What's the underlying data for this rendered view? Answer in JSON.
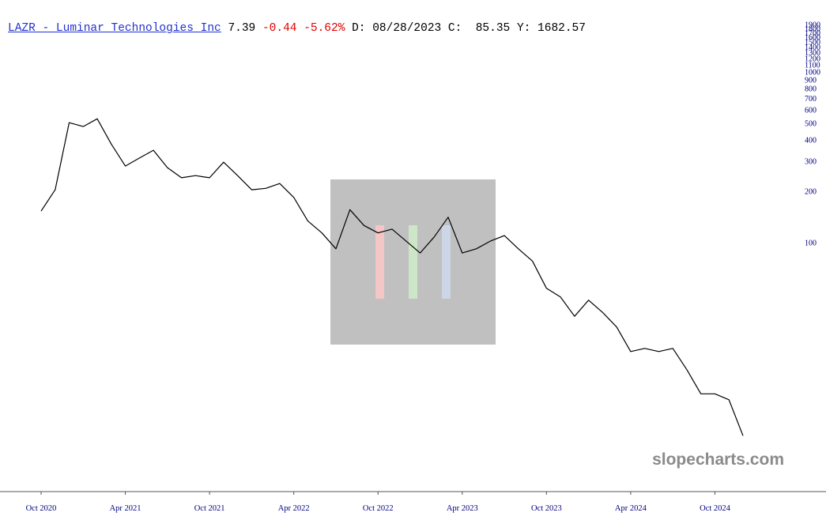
{
  "header": {
    "ticker_link": "LAZR - Luminar Technologies Inc",
    "price": "7.39",
    "change": "-0.44",
    "change_pct": "-5.62%",
    "details": "D: 08/28/2023 C:  85.35 Y: 1682.57"
  },
  "watermark": "slopecharts.com",
  "chart_data": {
    "type": "line",
    "log_scale": true,
    "grid": false,
    "color": "#000000",
    "x": [
      "2020-10",
      "2020-11",
      "2020-12",
      "2021-01",
      "2021-02",
      "2021-03",
      "2021-04",
      "2021-05",
      "2021-06",
      "2021-07",
      "2021-08",
      "2021-09",
      "2021-10",
      "2021-11",
      "2021-12",
      "2022-01",
      "2022-02",
      "2022-03",
      "2022-04",
      "2022-05",
      "2022-06",
      "2022-07",
      "2022-08",
      "2022-09",
      "2022-10",
      "2022-11",
      "2022-12",
      "2023-01",
      "2023-02",
      "2023-03",
      "2023-04",
      "2023-05",
      "2023-06",
      "2023-07",
      "2023-08",
      "2023-09",
      "2023-10",
      "2023-11",
      "2023-12",
      "2024-01",
      "2024-02",
      "2024-03",
      "2024-04",
      "2024-05",
      "2024-06",
      "2024-07",
      "2024-08",
      "2024-09",
      "2024-10",
      "2024-11",
      "2024-12"
    ],
    "values": [
      153,
      204,
      505,
      479,
      532,
      378,
      281,
      313,
      348,
      275,
      240,
      247,
      240,
      296,
      247,
      204,
      208,
      222,
      184,
      134,
      114,
      92,
      156,
      126,
      114,
      120,
      102,
      87,
      108,
      141,
      87,
      92,
      102,
      110,
      92,
      78,
      54,
      48,
      37,
      46,
      39,
      32,
      23,
      24,
      23,
      24,
      18,
      13,
      13,
      12,
      7.39
    ],
    "xlim": [
      "2020-10",
      "2024-12"
    ],
    "xticks": [
      {
        "value": "2020-10",
        "label": "Oct 2020"
      },
      {
        "value": "2021-04",
        "label": "Apr 2021"
      },
      {
        "value": "2021-10",
        "label": "Oct 2021"
      },
      {
        "value": "2022-04",
        "label": "Apr 2022"
      },
      {
        "value": "2022-10",
        "label": "Oct 2022"
      },
      {
        "value": "2023-04",
        "label": "Apr 2023"
      },
      {
        "value": "2023-10",
        "label": "Oct 2023"
      },
      {
        "value": "2024-04",
        "label": "Apr 2024"
      },
      {
        "value": "2024-10",
        "label": "Oct 2024"
      }
    ],
    "ylim": [
      3.55,
      1960
    ],
    "yticks": [
      100,
      200,
      300,
      400,
      500,
      600,
      700,
      800,
      900,
      1000,
      1100,
      1200,
      1300,
      1400,
      1500,
      1600,
      1700,
      1800,
      1900
    ]
  }
}
